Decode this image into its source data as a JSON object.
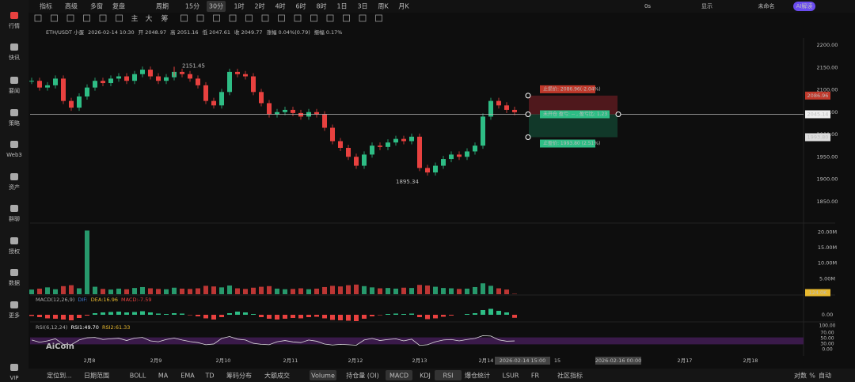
{
  "sidebar": [
    "行情",
    "快讯",
    "要闻",
    "策略",
    "Web3",
    "资产",
    "群聊",
    "授权",
    "数据",
    "更多",
    "VIP"
  ],
  "toolbar": {
    "left": [
      "指标",
      "高级",
      "多窗",
      "复盘",
      "周期"
    ],
    "periods": [
      "15分",
      "30分",
      "1时",
      "2时",
      "4时",
      "6时",
      "8时",
      "1日",
      "3日",
      "周K",
      "月K"
    ],
    "active_period": 1,
    "right": [
      "0s",
      "显示",
      "未命名",
      "AI解读"
    ]
  },
  "draw_toolbar": [
    "主",
    "大",
    "筹"
  ],
  "info": [
    "ETH/USDT 小蛋",
    "2026-02-14 10:30",
    "开 2048.97",
    "高 2051.16",
    "低 2047.61",
    "收 2049.77",
    "涨幅 0.04%(0.79)",
    "振幅 0.17%"
  ],
  "price": {
    "ylim": [
      1800,
      2200
    ],
    "yticks": [
      {
        "value": 1850,
        "label": "1850.00"
      },
      {
        "value": 1900,
        "label": "1900.00"
      },
      {
        "value": 1950,
        "label": "1950.00"
      },
      {
        "value": 2000,
        "label": "2000.00"
      },
      {
        "value": 2050,
        "label": "2050.00"
      },
      {
        "value": 2100,
        "label": "2100.00"
      },
      {
        "value": 2150,
        "label": "2150.00"
      },
      {
        "value": 2200,
        "label": "2200.00"
      }
    ],
    "closes": [
      2120,
      2105,
      2110,
      2125,
      2075,
      2060,
      2085,
      2105,
      2120,
      2115,
      2125,
      2130,
      2120,
      2135,
      2145,
      2130,
      2120,
      2128,
      2140,
      2135,
      2125,
      2110,
      2075,
      2065,
      2095,
      2140,
      2135,
      2130,
      2095,
      2070,
      2045,
      2050,
      2055,
      2048,
      2040,
      2050,
      2045,
      2015,
      1985,
      1970,
      1950,
      1930,
      1955,
      1975,
      1972,
      1982,
      1990,
      1985,
      1995,
      1925,
      1915,
      1930,
      1945,
      1955,
      1950,
      1962,
      1975,
      2040,
      2075,
      2065,
      2055,
      2049.77
    ],
    "high": 2151.45,
    "low": 1895.34,
    "last_price": 2045.14,
    "stop_loss": 2086.96,
    "take_profit": {
      "value": 1993.8,
      "label": "1993.80"
    },
    "stop_label": "止损价: 2086.96(-2.04%)",
    "open_label": "未开仓 盈亏: -- , 盈亏比: 1.23",
    "take_label": "止盈价: 1993.80 (2.51%)"
  },
  "volume": {
    "ylim": [
      0,
      21000000
    ],
    "yticks": [
      {
        "value": 5000000,
        "label": "5.00M"
      },
      {
        "value": 10000000,
        "label": "10.00M"
      },
      {
        "value": 15000000,
        "label": "15.00M"
      },
      {
        "value": 20000000,
        "label": "20.00M"
      }
    ],
    "values": [
      1500000,
      1800000,
      2200000,
      1600000,
      2600000,
      2900000,
      1900000,
      20500000,
      2400000,
      1700000,
      1500000,
      1800000,
      1600000,
      2000000,
      2300000,
      1900000,
      1700000,
      1600000,
      2100000,
      1800000,
      1700000,
      1900000,
      2700000,
      2500000,
      2200000,
      2800000,
      1900000,
      1700000,
      2100000,
      2400000,
      2600000,
      1800000,
      1600000,
      1700000,
      1900000,
      1600000,
      1800000,
      2300000,
      2700000,
      2500000,
      2900000,
      3100000,
      2600000,
      2200000,
      1900000,
      2000000,
      1800000,
      2100000,
      2000000,
      3000000,
      2800000,
      2400000,
      2000000,
      1900000,
      1700000,
      1800000,
      2300000,
      3500000,
      2700000,
      1900000,
      1500000,
      124000
    ],
    "last": {
      "value": 124000,
      "label": "124.0K"
    }
  },
  "macd": {
    "title": "MACD(12,26,9)",
    "dif": "DIF:",
    "dea": "DEA:16.96",
    "macd": "MACD:-7.59",
    "zero": {
      "value": 0,
      "label": "0.00"
    },
    "ylim": [
      -20,
      20
    ],
    "hist": [
      -3,
      -6,
      -9,
      -10,
      -12,
      -14,
      -8,
      -2,
      4,
      6,
      7,
      8,
      6,
      7,
      9,
      6,
      3,
      2,
      4,
      3,
      -1,
      -4,
      -9,
      -12,
      -6,
      4,
      8,
      6,
      2,
      -6,
      -10,
      -12,
      -10,
      -8,
      -9,
      -6,
      -5,
      -9,
      -13,
      -14,
      -15,
      -16,
      -10,
      -4,
      -1,
      2,
      3,
      2,
      3,
      -6,
      -11,
      -9,
      -5,
      -2,
      0,
      2,
      4,
      12,
      15,
      10,
      6,
      -7.59
    ]
  },
  "rsi": {
    "title": "RSI(6,12,24)",
    "rsi1": "RSI1:49.70",
    "rsi2": "RSI2:61.33",
    "ylim": [
      0,
      100
    ],
    "yticks": [
      {
        "value": 0,
        "label": "0.00"
      },
      {
        "value": 30,
        "label": "30.00"
      },
      {
        "value": 50,
        "label": "50.00"
      },
      {
        "value": 70,
        "label": "70.00"
      },
      {
        "value": 100,
        "label": "100.00"
      }
    ],
    "values": [
      55,
      42,
      50,
      62,
      30,
      28,
      55,
      68,
      70,
      58,
      62,
      65,
      52,
      66,
      70,
      50,
      45,
      58,
      66,
      55,
      46,
      40,
      28,
      32,
      64,
      75,
      60,
      55,
      36,
      30,
      28,
      45,
      52,
      44,
      40,
      55,
      48,
      32,
      26,
      30,
      28,
      25,
      55,
      64,
      52,
      58,
      62,
      50,
      60,
      24,
      28,
      45,
      55,
      58,
      50,
      58,
      64,
      80,
      78,
      56,
      48,
      49.7
    ]
  },
  "watermark": "AiCoin",
  "xaxis": {
    "labels": [
      "2月8",
      "2月9",
      "2月10",
      "2月11",
      "2月12",
      "2月13",
      "2月14"
    ],
    "cursor": "2026-02-14 15:00",
    "mid": "15",
    "cursor2": "2026-02-16 00:00",
    "after": [
      "2月17",
      "2月18"
    ]
  },
  "bottom": {
    "left": [
      "定位到...",
      "日期范围"
    ],
    "indicators": [
      "BOLL",
      "MA",
      "EMA",
      "TD",
      "筹码分布",
      "大额成交",
      "Volume",
      "持仓量 (OI)",
      "MACD",
      "KDJ",
      "RSI",
      "爆仓统计",
      "LSUR",
      "FR",
      "社区指标"
    ],
    "active": [
      6,
      8,
      10
    ],
    "right": [
      "对数",
      "%",
      "自动"
    ]
  }
}
